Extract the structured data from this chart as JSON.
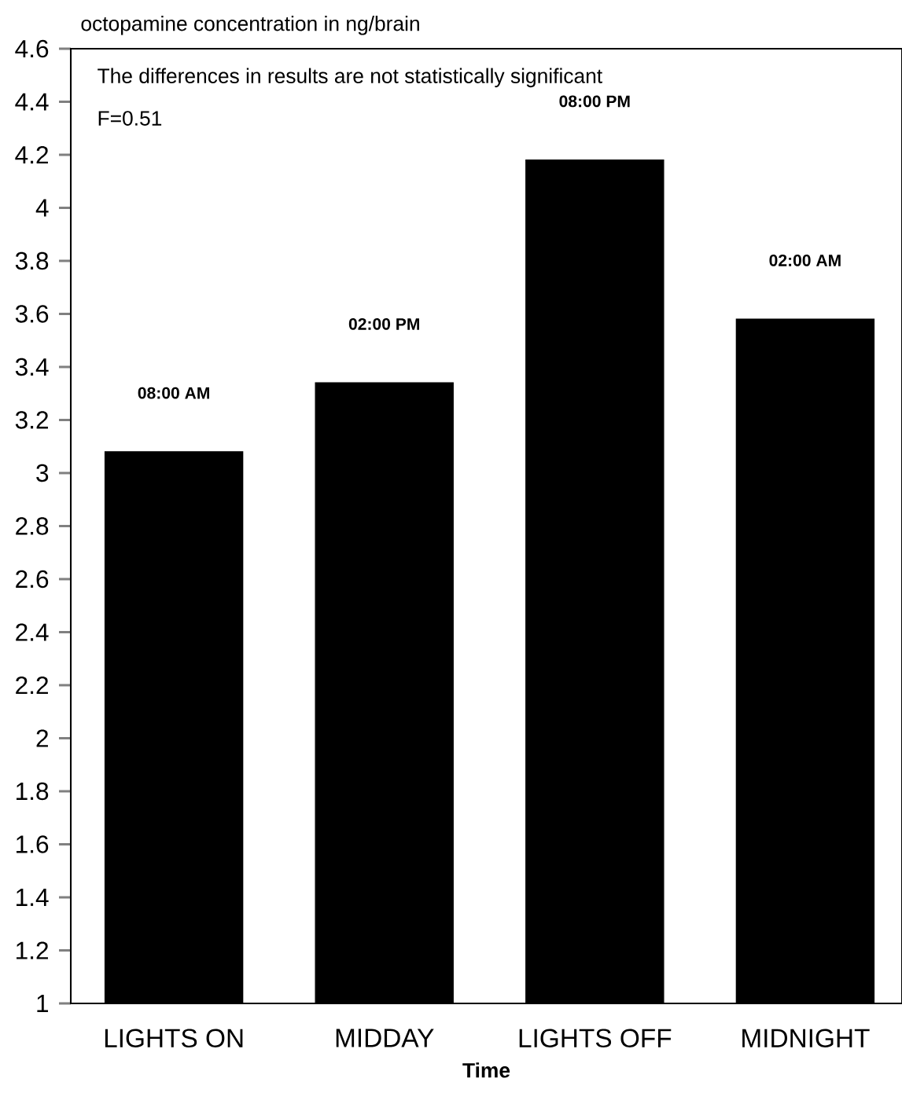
{
  "chart_data": {
    "type": "bar",
    "ylabel": "octopamine concentration in ng/brain",
    "xlabel": "Time",
    "categories": [
      "LIGHTS ON",
      "MIDDAY",
      "LIGHTS OFF",
      "MIDNIGHT"
    ],
    "values": [
      3.08,
      3.34,
      4.18,
      3.58
    ],
    "color": "#000000",
    "ylim": [
      1,
      4.6
    ],
    "yticks": [
      1,
      1.2,
      1.4,
      1.6,
      1.8,
      2,
      2.2,
      2.4,
      2.6,
      2.8,
      3,
      3.2,
      3.4,
      3.6,
      3.8,
      4,
      4.2,
      4.4,
      4.6
    ],
    "grid": false,
    "annotations": [
      "The differences in results are not statistically significant",
      "F=0.51",
      "08:00 AM",
      "02:00 PM",
      "08:00 PM",
      "02:00 AM"
    ]
  }
}
